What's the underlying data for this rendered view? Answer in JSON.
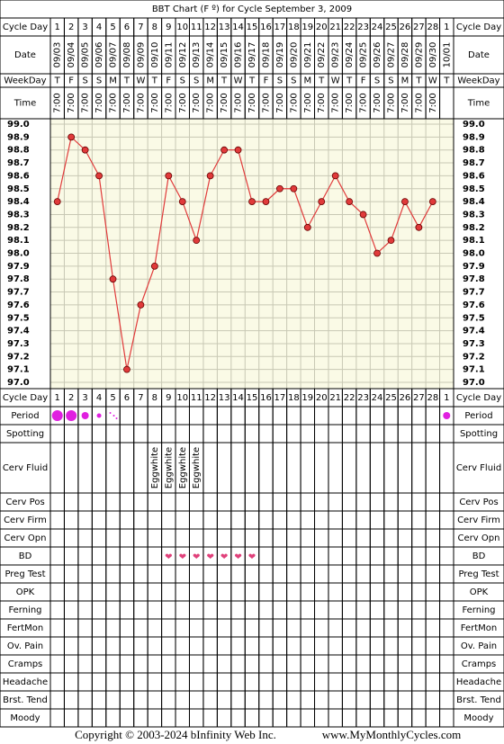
{
  "title": "BBT Chart (F º) for Cycle September 3, 2009",
  "row_labels": {
    "cycle_day": "Cycle Day",
    "date": "Date",
    "weekday": "WeekDay",
    "time": "Time",
    "period": "Period",
    "spotting": "Spotting",
    "cerv_fluid": "Cerv Fluid",
    "cerv_pos": "Cerv Pos",
    "cerv_firm": "Cerv Firm",
    "cerv_opn": "Cerv Opn",
    "bd": "BD",
    "preg_test": "Preg Test",
    "opk": "OPK",
    "ferning": "Ferning",
    "fertmon": "FertMon",
    "ov_pain": "Ov. Pain",
    "cramps": "Cramps",
    "headache": "Headache",
    "brst_tend": "Brst. Tend",
    "moody": "Moody"
  },
  "columns": {
    "cycle_day": [
      1,
      2,
      3,
      4,
      5,
      6,
      7,
      8,
      9,
      10,
      11,
      12,
      13,
      14,
      15,
      16,
      17,
      18,
      19,
      20,
      21,
      22,
      23,
      24,
      25,
      26,
      27,
      28,
      1
    ],
    "weekday": [
      "T",
      "F",
      "S",
      "S",
      "M",
      "T",
      "W",
      "T",
      "F",
      "S",
      "S",
      "M",
      "T",
      "W",
      "T",
      "F",
      "S",
      "S",
      "M",
      "T",
      "W",
      "T",
      "F",
      "S",
      "S",
      "M",
      "T",
      "W",
      "T"
    ],
    "time": [
      "7:00",
      "7:00",
      "7:00",
      "7:00",
      "7:00",
      "7:00",
      "7:00",
      "7:00",
      "7:00",
      "7:00",
      "7:00",
      "7:00",
      "7:00",
      "7:00",
      "7:00",
      "7:00",
      "7:00",
      "7:00",
      "7:00",
      "7:00",
      "7:00",
      "7:00",
      "7:00",
      "7:00",
      "7:00",
      "7:00",
      "7:00",
      "7:00",
      null
    ]
  },
  "chart_data": {
    "type": "line",
    "categories": [
      "09/03",
      "09/04",
      "09/05",
      "09/06",
      "09/07",
      "09/08",
      "09/09",
      "09/10",
      "09/11",
      "09/12",
      "09/13",
      "09/14",
      "09/15",
      "09/16",
      "09/17",
      "09/18",
      "09/19",
      "09/20",
      "09/21",
      "09/22",
      "09/23",
      "09/24",
      "09/25",
      "09/26",
      "09/27",
      "09/28",
      "09/29",
      "09/30",
      "10/01"
    ],
    "series": [
      {
        "color": "#e03a3a",
        "values": [
          98.4,
          98.9,
          98.8,
          98.6,
          97.8,
          97.1,
          97.6,
          97.9,
          98.6,
          98.4,
          98.1,
          98.6,
          98.8,
          98.8,
          98.4,
          98.4,
          98.5,
          98.5,
          98.2,
          98.4,
          98.6,
          98.4,
          98.3,
          98.0,
          98.1,
          98.4,
          98.2,
          98.4,
          null
        ]
      }
    ],
    "ylim": [
      97.0,
      99.0
    ],
    "yticks": [
      {
        "value": 99,
        "label": "99.0"
      },
      98.9,
      98.8,
      98.7,
      98.6,
      98.5,
      98.4,
      98.3,
      98.2,
      98.1,
      {
        "value": 98,
        "label": "98.0"
      },
      97.9,
      97.8,
      97.7,
      97.6,
      97.5,
      97.4,
      97.3,
      97.2,
      97.1,
      {
        "value": 97,
        "label": "97.0"
      }
    ],
    "grid": true
  },
  "observations": {
    "period": [
      "heavy",
      "heavy",
      "medium",
      "light",
      "spotting",
      null,
      null,
      null,
      null,
      null,
      null,
      null,
      null,
      null,
      null,
      null,
      null,
      null,
      null,
      null,
      null,
      null,
      null,
      null,
      null,
      null,
      null,
      null,
      "medium"
    ],
    "cerv_fluid": [
      null,
      null,
      null,
      null,
      null,
      null,
      null,
      "Eggwhite",
      "Eggwhite",
      "Eggwhite",
      "Eggwhite",
      null,
      null,
      null,
      null,
      null,
      null,
      null,
      null,
      null,
      null,
      null,
      null,
      null,
      null,
      null,
      null,
      null,
      null
    ],
    "bd": [
      null,
      null,
      null,
      null,
      null,
      null,
      null,
      null,
      "❤",
      "❤",
      "❤",
      "❤",
      "❤",
      "❤",
      "❤",
      null,
      null,
      null,
      null,
      null,
      null,
      null,
      null,
      null,
      null,
      null,
      null,
      null,
      null
    ]
  },
  "footer": {
    "copyright": "Copyright © 2003-2024 bInfinity Web Inc.",
    "url": "www.MyMonthlyCycles.com"
  }
}
